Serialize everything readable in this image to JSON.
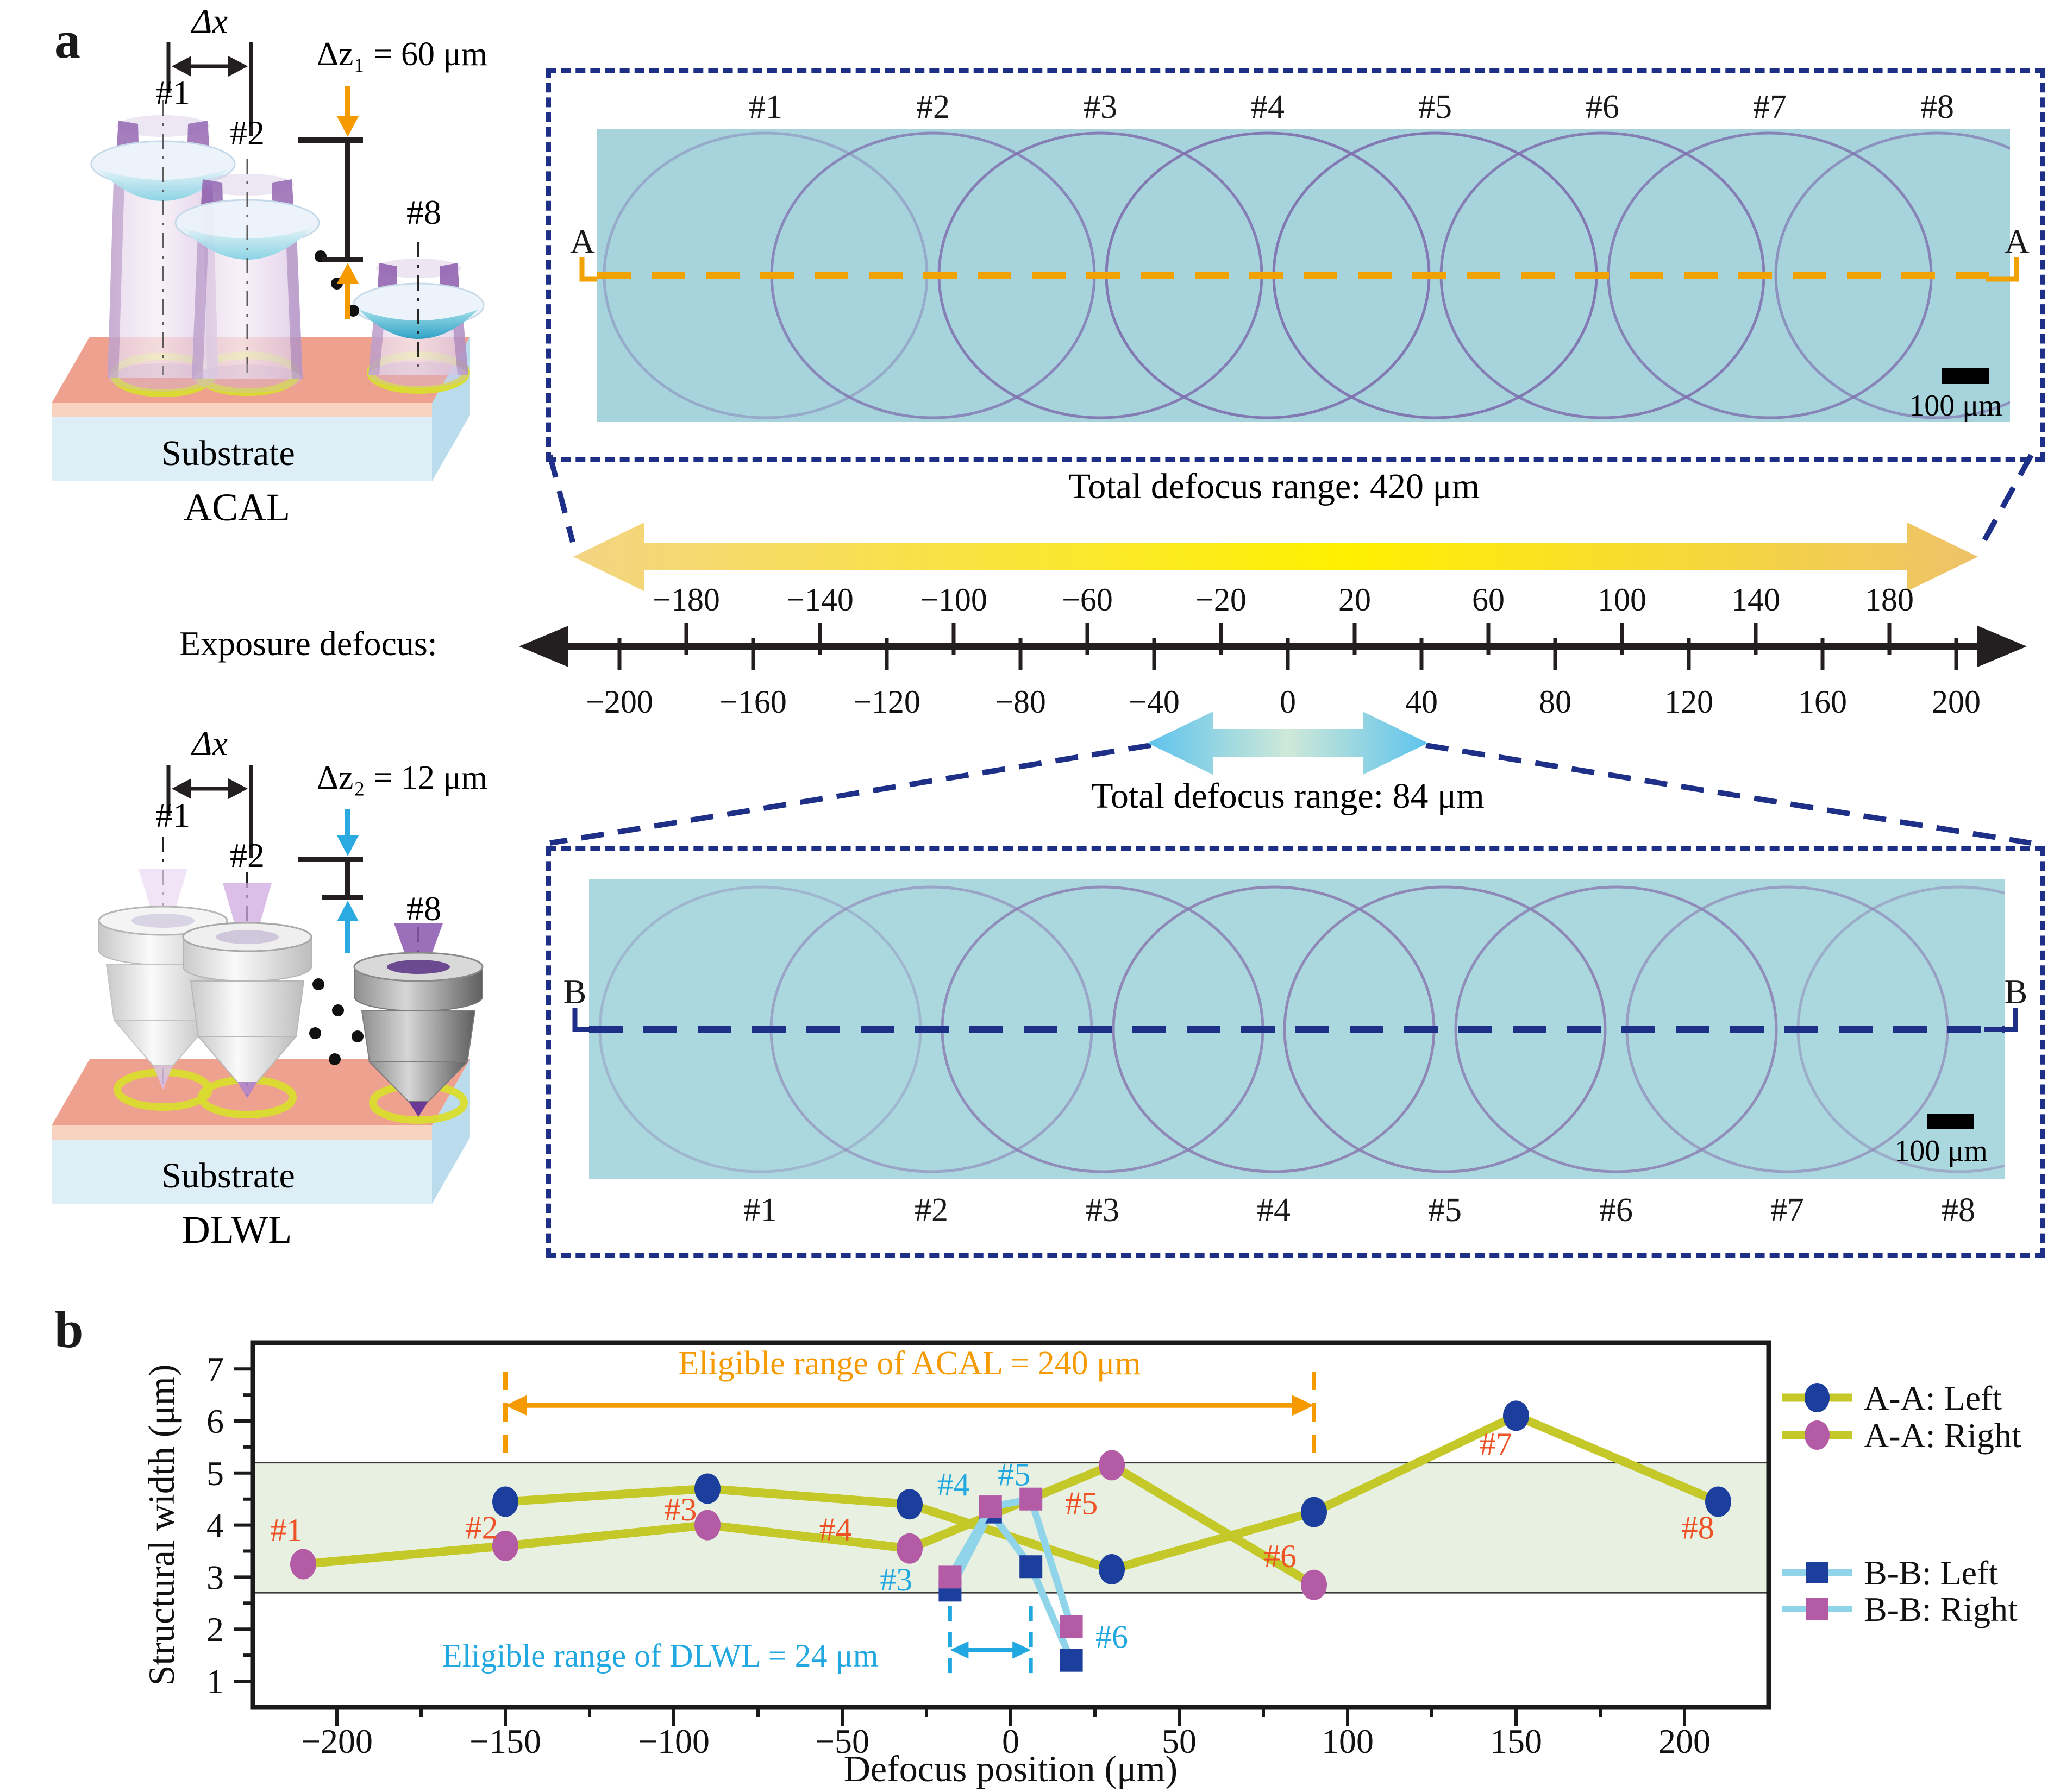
{
  "panel_a": {
    "label": "a",
    "acal": {
      "dx_label": "Δx",
      "n1": "#1",
      "n2": "#2",
      "n8": "#8",
      "dz_label": "Δz₁ = 60 μm",
      "substrate": "Substrate",
      "caption": "ACAL"
    },
    "dlwl": {
      "dx_label": "Δx",
      "n1": "#1",
      "n2": "#2",
      "n8": "#8",
      "dz_label": "Δz₂ = 12 μm",
      "substrate": "Substrate",
      "caption": "DLWL"
    },
    "exposure_axis": {
      "label": "Exposure defocus:",
      "ticks_above": [
        {
          "v": -180,
          "t": "−180"
        },
        {
          "v": -140,
          "t": "−140"
        },
        {
          "v": -100,
          "t": "−100"
        },
        {
          "v": -60,
          "t": "−60"
        },
        {
          "v": -20,
          "t": "−20"
        },
        {
          "v": 20,
          "t": "20"
        },
        {
          "v": 60,
          "t": "60"
        },
        {
          "v": 100,
          "t": "100"
        },
        {
          "v": 140,
          "t": "140"
        },
        {
          "v": 180,
          "t": "180"
        }
      ],
      "ticks_below": [
        {
          "v": -200,
          "t": "−200"
        },
        {
          "v": -160,
          "t": "−160"
        },
        {
          "v": -120,
          "t": "−120"
        },
        {
          "v": -80,
          "t": "−80"
        },
        {
          "v": -40,
          "t": "−40"
        },
        {
          "v": 0,
          "t": "0"
        },
        {
          "v": 40,
          "t": "40"
        },
        {
          "v": 80,
          "t": "80"
        },
        {
          "v": 120,
          "t": "120"
        },
        {
          "v": 160,
          "t": "160"
        },
        {
          "v": 200,
          "t": "200"
        }
      ]
    },
    "aa_section": {
      "label_left": "A",
      "label_right": "A",
      "lens_labels": [
        "#1",
        "#2",
        "#3",
        "#4",
        "#5",
        "#6",
        "#7",
        "#8"
      ],
      "scalebar": "100 μm",
      "range_text": "Total defocus range: 420 μm"
    },
    "bb_section": {
      "label_left": "B",
      "label_right": "B",
      "lens_labels": [
        "#1",
        "#2",
        "#3",
        "#4",
        "#5",
        "#6",
        "#7",
        "#8"
      ],
      "scalebar": "100 μm",
      "range_text": "Total defocus range: 84 μm"
    }
  },
  "panel_b": {
    "label": "b",
    "chart_data": {
      "type": "line",
      "xlabel": "Defocus position (μm)",
      "ylabel": "Structural width (μm)",
      "xlim": [
        -225,
        225
      ],
      "ylim": [
        0.5,
        7.5
      ],
      "xticks": [
        {
          "v": -200,
          "t": "−200"
        },
        {
          "v": -150,
          "t": "−150"
        },
        {
          "v": -100,
          "t": "−100"
        },
        {
          "v": -50,
          "t": "−50"
        },
        {
          "v": 0,
          "t": "0"
        },
        {
          "v": 50,
          "t": "50"
        },
        {
          "v": 100,
          "t": "100"
        },
        {
          "v": 150,
          "t": "150"
        },
        {
          "v": 200,
          "t": "200"
        }
      ],
      "yticks": [
        {
          "v": 1,
          "t": "1"
        },
        {
          "v": 2,
          "t": "2"
        },
        {
          "v": 3,
          "t": "3"
        },
        {
          "v": 4,
          "t": "4"
        },
        {
          "v": 5,
          "t": "5"
        },
        {
          "v": 6,
          "t": "6"
        },
        {
          "v": 7,
          "t": "7"
        }
      ],
      "grid": false,
      "band": {
        "from": 2.7,
        "to": 5.2,
        "fill": "#e8f1e1",
        "edge": "#3a3a3a"
      },
      "series": [
        {
          "name": "A-A: Left",
          "marker": "circle",
          "marker_color": "#1c3f9e",
          "line_color": "#c5c829",
          "x": [
            -150,
            -90,
            -30,
            30,
            90,
            150,
            210
          ],
          "y": [
            4.45,
            4.7,
            4.4,
            3.15,
            4.25,
            6.1,
            4.45
          ]
        },
        {
          "name": "A-A: Right",
          "marker": "circle",
          "marker_color": "#b35ba4",
          "line_color": "#c5c829",
          "x": [
            -210,
            -150,
            -90,
            -30,
            30,
            90
          ],
          "y": [
            3.25,
            3.6,
            4.0,
            3.55,
            5.15,
            2.85
          ]
        },
        {
          "name": "B-B: Left",
          "marker": "square",
          "marker_color": "#1c3f9e",
          "line_color": "#8fd4e8",
          "x": [
            -18,
            -6,
            6,
            18
          ],
          "y": [
            2.75,
            4.25,
            3.2,
            1.4
          ]
        },
        {
          "name": "B-B: Right",
          "marker": "square",
          "marker_color": "#b35ba4",
          "line_color": "#8fd4e8",
          "x": [
            -18,
            -6,
            6,
            18
          ],
          "y": [
            3.0,
            4.35,
            4.5,
            2.05
          ]
        }
      ],
      "point_labels_aa": [
        {
          "t": "#1",
          "x": -215,
          "y": 3.9
        },
        {
          "t": "#2",
          "x": -157,
          "y": 3.95
        },
        {
          "t": "#3",
          "x": -98,
          "y": 4.3
        },
        {
          "t": "#4",
          "x": -52,
          "y": 3.92
        },
        {
          "t": "#5",
          "x": 21,
          "y": 4.42
        },
        {
          "t": "#6",
          "x": 80,
          "y": 3.4
        },
        {
          "t": "#7",
          "x": 144,
          "y": 5.55
        },
        {
          "t": "#8",
          "x": 204,
          "y": 3.95
        }
      ],
      "point_labels_bb": [
        {
          "t": "#3",
          "x": -34,
          "y": 2.95
        },
        {
          "t": "#4",
          "x": -17,
          "y": 4.78
        },
        {
          "t": "#5",
          "x": 1,
          "y": 4.97
        },
        {
          "t": "#6",
          "x": 30,
          "y": 1.85
        }
      ],
      "annotations": {
        "acal": {
          "text": "Eligible range of ACAL = 240 μm",
          "x1": -150,
          "x2": 90,
          "arrow_y": 6.3,
          "line_y1": 5.3,
          "line_y2": 6.95,
          "text_y": 6.9,
          "color": "#f59a01"
        },
        "dlwl": {
          "text": "Eligible range of DLWL = 24 μm",
          "x1": -18,
          "x2": 6,
          "arrow_y": 1.6,
          "line_y1": 1.12,
          "line_y2": 2.45,
          "text_cx": -104,
          "text_y": 1.28,
          "color": "#22a8e0"
        }
      },
      "legend_position": "right",
      "legend": [
        {
          "label": "A-A: Left",
          "marker": "circle",
          "marker_color": "#1c3f9e",
          "line_color": "#c5c829"
        },
        {
          "label": "A-A: Right",
          "marker": "circle",
          "marker_color": "#b35ba4",
          "line_color": "#c5c829"
        },
        {
          "label": "B-B: Left",
          "marker": "square",
          "marker_color": "#1c3f9e",
          "line_color": "#8fd4e8"
        },
        {
          "label": "B-B: Right",
          "marker": "square",
          "marker_color": "#b35ba4",
          "line_color": "#8fd4e8"
        }
      ],
      "label_colors": {
        "aa": "#ee5226",
        "bb": "#22a8e0"
      }
    }
  }
}
